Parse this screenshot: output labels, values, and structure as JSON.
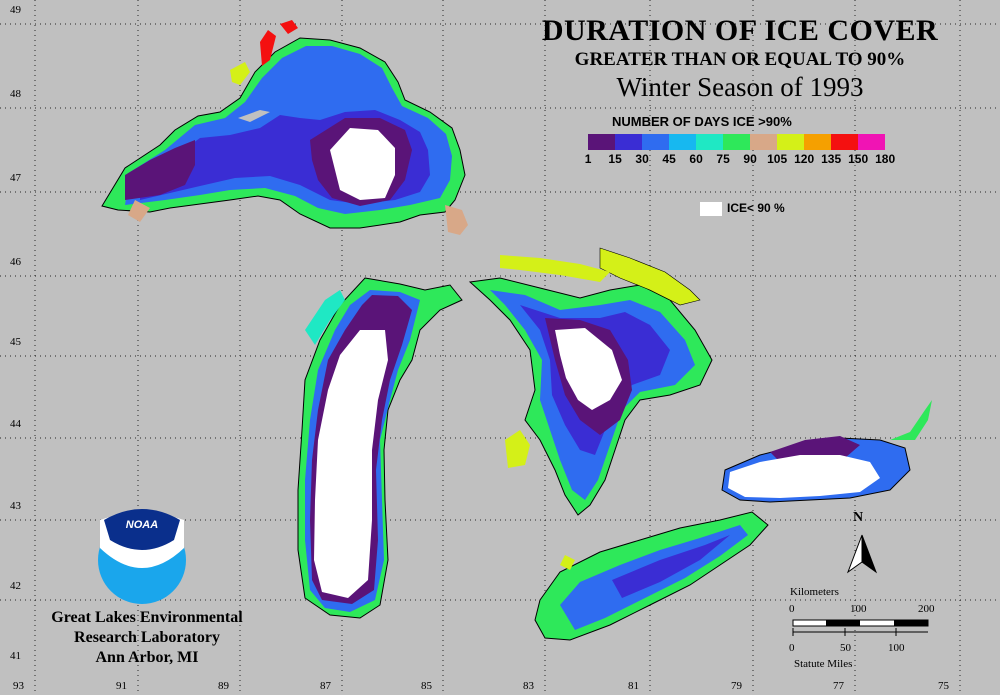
{
  "title": {
    "main": "DURATION OF ICE COVER",
    "sub": "GREATER THAN OR EQUAL TO 90%",
    "season": "Winter Season of 1993"
  },
  "legend": {
    "title": "NUMBER OF DAYS ICE >90%",
    "colors": [
      "#5a1478",
      "#3a2dd4",
      "#2f6cf0",
      "#17b8f0",
      "#1fe8c4",
      "#2ee85a",
      "#d8a888",
      "#d4f018",
      "#f5a000",
      "#f41010",
      "#f014b4"
    ],
    "labels": [
      "1",
      "15",
      "30",
      "45",
      "60",
      "75",
      "90",
      "105",
      "120",
      "135",
      "150",
      "180"
    ],
    "ice_label": "ICE< 90 %"
  },
  "axes": {
    "lat_labels": [
      "49",
      "48",
      "47",
      "46",
      "45",
      "44",
      "43",
      "42",
      "41"
    ],
    "lon_labels": [
      "93",
      "91",
      "89",
      "87",
      "85",
      "83",
      "81",
      "79",
      "77",
      "75"
    ]
  },
  "lab": {
    "line1": "Great Lakes Environmental",
    "line2": "Research Laboratory",
    "line3": "Ann Arbor, MI",
    "logo_text": "NOAA"
  },
  "scale": {
    "km_title": "Kilometers",
    "km_ticks": [
      "0",
      "100",
      "200"
    ],
    "mi_ticks": [
      "0",
      "50",
      "100"
    ],
    "mi_title": "Statute Miles"
  },
  "north": "N"
}
